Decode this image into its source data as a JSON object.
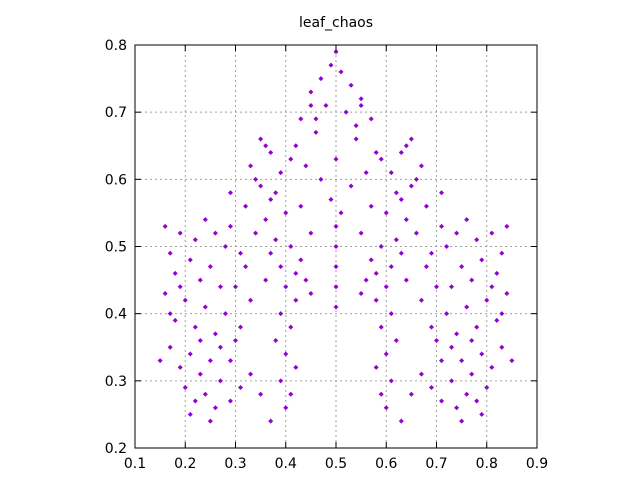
{
  "chart_data": {
    "type": "scatter",
    "title": "leaf_chaos",
    "xlabel": "",
    "ylabel": "",
    "xlim": [
      0.1,
      0.9
    ],
    "ylim": [
      0.2,
      0.8
    ],
    "xticks": [
      "0.1",
      "0.2",
      "0.3",
      "0.4",
      "0.5",
      "0.6",
      "0.7",
      "0.8",
      "0.9"
    ],
    "yticks": [
      "0.2",
      "0.3",
      "0.4",
      "0.5",
      "0.6",
      "0.7",
      "0.8"
    ],
    "grid": true,
    "legend": "none",
    "marker_color": "#9400D3",
    "series": [
      {
        "points": [
          [
            0.5,
            0.79
          ],
          [
            0.49,
            0.77
          ],
          [
            0.51,
            0.76
          ],
          [
            0.47,
            0.75
          ],
          [
            0.53,
            0.74
          ],
          [
            0.45,
            0.73
          ],
          [
            0.55,
            0.72
          ],
          [
            0.48,
            0.71
          ],
          [
            0.52,
            0.7
          ],
          [
            0.43,
            0.69
          ],
          [
            0.57,
            0.69
          ],
          [
            0.46,
            0.67
          ],
          [
            0.54,
            0.66
          ],
          [
            0.42,
            0.65
          ],
          [
            0.58,
            0.64
          ],
          [
            0.5,
            0.63
          ],
          [
            0.44,
            0.62
          ],
          [
            0.56,
            0.61
          ],
          [
            0.47,
            0.6
          ],
          [
            0.53,
            0.59
          ],
          [
            0.49,
            0.57
          ],
          [
            0.51,
            0.55
          ],
          [
            0.5,
            0.53
          ],
          [
            0.5,
            0.5
          ],
          [
            0.5,
            0.47
          ],
          [
            0.5,
            0.44
          ],
          [
            0.5,
            0.41
          ],
          [
            0.35,
            0.66
          ],
          [
            0.37,
            0.64
          ],
          [
            0.33,
            0.62
          ],
          [
            0.39,
            0.61
          ],
          [
            0.35,
            0.59
          ],
          [
            0.37,
            0.57
          ],
          [
            0.32,
            0.56
          ],
          [
            0.4,
            0.55
          ],
          [
            0.36,
            0.54
          ],
          [
            0.34,
            0.52
          ],
          [
            0.38,
            0.51
          ],
          [
            0.41,
            0.5
          ],
          [
            0.37,
            0.49
          ],
          [
            0.43,
            0.48
          ],
          [
            0.39,
            0.47
          ],
          [
            0.42,
            0.46
          ],
          [
            0.44,
            0.45
          ],
          [
            0.4,
            0.44
          ],
          [
            0.45,
            0.43
          ],
          [
            0.42,
            0.42
          ],
          [
            0.39,
            0.4
          ],
          [
            0.41,
            0.38
          ],
          [
            0.38,
            0.36
          ],
          [
            0.4,
            0.34
          ],
          [
            0.42,
            0.32
          ],
          [
            0.39,
            0.3
          ],
          [
            0.41,
            0.28
          ],
          [
            0.4,
            0.26
          ],
          [
            0.65,
            0.66
          ],
          [
            0.63,
            0.64
          ],
          [
            0.67,
            0.62
          ],
          [
            0.61,
            0.61
          ],
          [
            0.65,
            0.59
          ],
          [
            0.63,
            0.57
          ],
          [
            0.68,
            0.56
          ],
          [
            0.6,
            0.55
          ],
          [
            0.64,
            0.54
          ],
          [
            0.66,
            0.52
          ],
          [
            0.62,
            0.51
          ],
          [
            0.59,
            0.5
          ],
          [
            0.63,
            0.49
          ],
          [
            0.57,
            0.48
          ],
          [
            0.61,
            0.47
          ],
          [
            0.58,
            0.46
          ],
          [
            0.56,
            0.45
          ],
          [
            0.6,
            0.44
          ],
          [
            0.55,
            0.43
          ],
          [
            0.58,
            0.42
          ],
          [
            0.61,
            0.4
          ],
          [
            0.59,
            0.38
          ],
          [
            0.62,
            0.36
          ],
          [
            0.6,
            0.34
          ],
          [
            0.58,
            0.32
          ],
          [
            0.61,
            0.3
          ],
          [
            0.59,
            0.28
          ],
          [
            0.6,
            0.26
          ],
          [
            0.16,
            0.53
          ],
          [
            0.19,
            0.52
          ],
          [
            0.22,
            0.51
          ],
          [
            0.17,
            0.49
          ],
          [
            0.21,
            0.48
          ],
          [
            0.25,
            0.47
          ],
          [
            0.18,
            0.46
          ],
          [
            0.23,
            0.45
          ],
          [
            0.27,
            0.44
          ],
          [
            0.16,
            0.43
          ],
          [
            0.2,
            0.42
          ],
          [
            0.24,
            0.41
          ],
          [
            0.28,
            0.4
          ],
          [
            0.18,
            0.39
          ],
          [
            0.22,
            0.38
          ],
          [
            0.26,
            0.37
          ],
          [
            0.3,
            0.36
          ],
          [
            0.17,
            0.35
          ],
          [
            0.21,
            0.34
          ],
          [
            0.25,
            0.33
          ],
          [
            0.15,
            0.33
          ],
          [
            0.19,
            0.32
          ],
          [
            0.23,
            0.31
          ],
          [
            0.27,
            0.3
          ],
          [
            0.2,
            0.29
          ],
          [
            0.24,
            0.28
          ],
          [
            0.22,
            0.27
          ],
          [
            0.26,
            0.26
          ],
          [
            0.21,
            0.25
          ],
          [
            0.25,
            0.24
          ],
          [
            0.29,
            0.27
          ],
          [
            0.31,
            0.29
          ],
          [
            0.33,
            0.31
          ],
          [
            0.35,
            0.28
          ],
          [
            0.37,
            0.24
          ],
          [
            0.28,
            0.5
          ],
          [
            0.31,
            0.49
          ],
          [
            0.26,
            0.52
          ],
          [
            0.24,
            0.54
          ],
          [
            0.29,
            0.53
          ],
          [
            0.32,
            0.47
          ],
          [
            0.3,
            0.44
          ],
          [
            0.84,
            0.53
          ],
          [
            0.81,
            0.52
          ],
          [
            0.78,
            0.51
          ],
          [
            0.83,
            0.49
          ],
          [
            0.79,
            0.48
          ],
          [
            0.75,
            0.47
          ],
          [
            0.82,
            0.46
          ],
          [
            0.77,
            0.45
          ],
          [
            0.73,
            0.44
          ],
          [
            0.84,
            0.43
          ],
          [
            0.8,
            0.42
          ],
          [
            0.76,
            0.41
          ],
          [
            0.72,
            0.4
          ],
          [
            0.82,
            0.39
          ],
          [
            0.78,
            0.38
          ],
          [
            0.74,
            0.37
          ],
          [
            0.7,
            0.36
          ],
          [
            0.83,
            0.35
          ],
          [
            0.79,
            0.34
          ],
          [
            0.75,
            0.33
          ],
          [
            0.85,
            0.33
          ],
          [
            0.81,
            0.32
          ],
          [
            0.77,
            0.31
          ],
          [
            0.73,
            0.3
          ],
          [
            0.8,
            0.29
          ],
          [
            0.76,
            0.28
          ],
          [
            0.78,
            0.27
          ],
          [
            0.74,
            0.26
          ],
          [
            0.79,
            0.25
          ],
          [
            0.75,
            0.24
          ],
          [
            0.71,
            0.27
          ],
          [
            0.69,
            0.29
          ],
          [
            0.67,
            0.31
          ],
          [
            0.65,
            0.28
          ],
          [
            0.63,
            0.24
          ],
          [
            0.72,
            0.5
          ],
          [
            0.69,
            0.49
          ],
          [
            0.74,
            0.52
          ],
          [
            0.76,
            0.54
          ],
          [
            0.71,
            0.53
          ],
          [
            0.68,
            0.47
          ],
          [
            0.7,
            0.44
          ],
          [
            0.45,
            0.71
          ],
          [
            0.55,
            0.71
          ],
          [
            0.46,
            0.69
          ],
          [
            0.54,
            0.68
          ],
          [
            0.41,
            0.63
          ],
          [
            0.59,
            0.63
          ],
          [
            0.36,
            0.65
          ],
          [
            0.64,
            0.65
          ],
          [
            0.34,
            0.6
          ],
          [
            0.66,
            0.6
          ],
          [
            0.38,
            0.58
          ],
          [
            0.62,
            0.58
          ],
          [
            0.43,
            0.56
          ],
          [
            0.57,
            0.56
          ],
          [
            0.45,
            0.52
          ],
          [
            0.55,
            0.52
          ],
          [
            0.36,
            0.45
          ],
          [
            0.64,
            0.45
          ],
          [
            0.33,
            0.42
          ],
          [
            0.67,
            0.42
          ],
          [
            0.31,
            0.38
          ],
          [
            0.69,
            0.38
          ],
          [
            0.27,
            0.35
          ],
          [
            0.73,
            0.35
          ],
          [
            0.29,
            0.33
          ],
          [
            0.71,
            0.33
          ],
          [
            0.23,
            0.36
          ],
          [
            0.77,
            0.36
          ],
          [
            0.19,
            0.44
          ],
          [
            0.81,
            0.44
          ],
          [
            0.17,
            0.4
          ],
          [
            0.83,
            0.4
          ],
          [
            0.29,
            0.58
          ],
          [
            0.71,
            0.58
          ]
        ]
      }
    ]
  }
}
